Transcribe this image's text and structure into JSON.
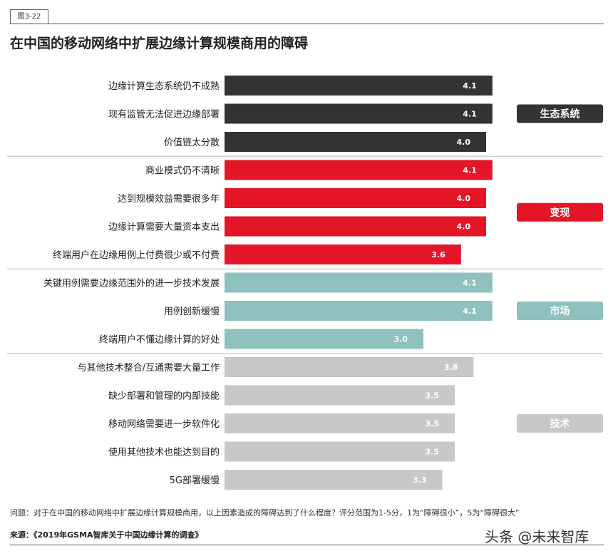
{
  "figure_label": "图3-22",
  "chart_data": {
    "type": "bar",
    "orientation": "horizontal",
    "title": "在中国的移动网络中扩展边缘计算规模商用的障碍",
    "xlabel": "",
    "ylabel": "",
    "xlim": [
      1,
      5
    ],
    "groups": [
      {
        "name": "生态系统",
        "color": "#333333",
        "label_color": "#ffffff",
        "categories": [
          "边缘计算生态系统仍不成熟",
          "现有监管无法促进边缘部署",
          "价值链太分散"
        ],
        "values": [
          4.1,
          4.1,
          4.0
        ]
      },
      {
        "name": "变现",
        "color": "#e31526",
        "label_color": "#ffffff",
        "categories": [
          "商业模式仍不清晰",
          "达到规模效益需要很多年",
          "边缘计算需要大量资本支出",
          "终端用户在边缘用例上付费很少或不付费"
        ],
        "values": [
          4.1,
          4.0,
          4.0,
          3.6
        ]
      },
      {
        "name": "市场",
        "color": "#8fc1bf",
        "label_color": "#ffffff",
        "categories": [
          "关键用例需要边缘范围外的进一步技术发展",
          "用例创新缓慢",
          "终端用户不懂边缘计算的好处"
        ],
        "values": [
          4.1,
          4.1,
          3.0
        ]
      },
      {
        "name": "技术",
        "color": "#c8c8c8",
        "label_color": "#ffffff",
        "categories": [
          "与其他技术整合/互通需要大量工作",
          "缺少部署和管理的内部技能",
          "移动网络需要进一步软件化",
          "使用其他技术也能达到目的",
          "5G部署缓慢"
        ],
        "values": [
          3.8,
          3.5,
          3.5,
          3.5,
          3.3
        ]
      }
    ]
  },
  "footer": {
    "question": "问题：对于在中国的移动网络中扩展边缘计算规模商用，以上因素造成的障碍达到了什么程度？评分范围为1-5分，1为“障碍很小”，5为“障碍很大”",
    "source": "来源：《2019年GSMA智库关于中国边缘计算的调查》",
    "watermark": "头条 @未来智库"
  }
}
